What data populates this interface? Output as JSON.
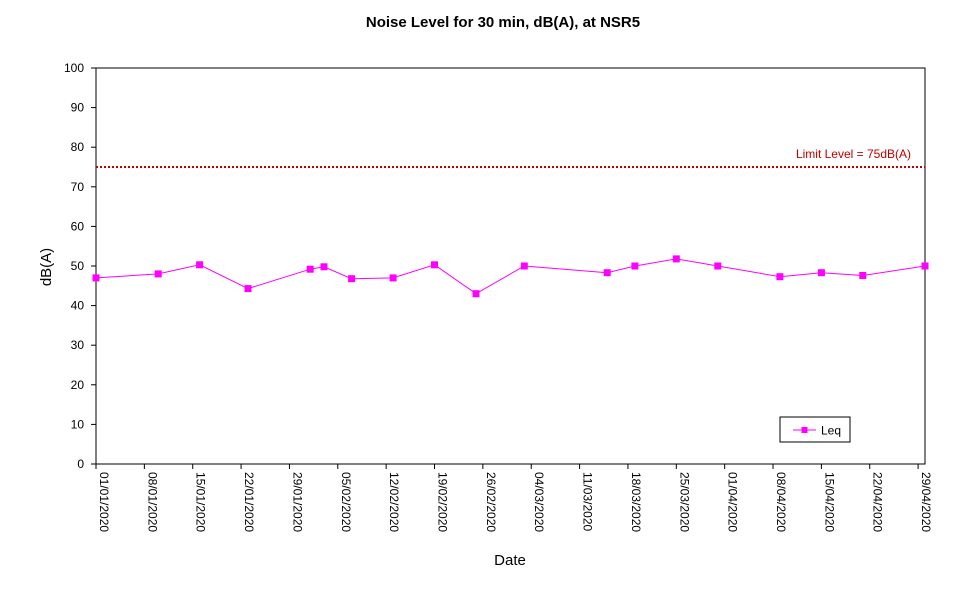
{
  "chart_data": {
    "type": "line",
    "title": "Noise Level for 30 min, dB(A), at NSR5",
    "xlabel": "Date",
    "ylabel": "dB(A)",
    "ylim": [
      0,
      100
    ],
    "yticks": [
      "0",
      "10",
      "20",
      "30",
      "40",
      "50",
      "60",
      "70",
      "80",
      "90",
      "100"
    ],
    "xlim": [
      "2020-01-01",
      "2020-04-30"
    ],
    "xtick_dates": [
      "2020-01-01",
      "2020-01-08",
      "2020-01-15",
      "2020-01-22",
      "2020-01-29",
      "2020-02-05",
      "2020-02-12",
      "2020-02-19",
      "2020-02-26",
      "2020-03-04",
      "2020-03-11",
      "2020-03-18",
      "2020-03-25",
      "2020-04-01",
      "2020-04-08",
      "2020-04-15",
      "2020-04-22",
      "2020-04-29"
    ],
    "xticks": [
      "01/01/2020",
      "08/01/2020",
      "15/01/2020",
      "22/01/2020",
      "29/01/2020",
      "05/02/2020",
      "12/02/2020",
      "19/02/2020",
      "26/02/2020",
      "04/03/2020",
      "11/03/2020",
      "18/03/2020",
      "25/03/2020",
      "01/04/2020",
      "08/04/2020",
      "15/04/2020",
      "22/04/2020",
      "29/04/2020"
    ],
    "grid": false,
    "legend_position": "bottom-right",
    "series": [
      {
        "name": "Leq",
        "color": "#ff00ff",
        "marker": "square",
        "points": [
          {
            "x": "2020-01-01",
            "y": 47.0
          },
          {
            "x": "2020-01-10",
            "y": 48.0
          },
          {
            "x": "2020-01-16",
            "y": 50.3
          },
          {
            "x": "2020-01-23",
            "y": 44.3
          },
          {
            "x": "2020-02-01",
            "y": 49.2
          },
          {
            "x": "2020-02-03",
            "y": 49.8
          },
          {
            "x": "2020-02-07",
            "y": 46.8
          },
          {
            "x": "2020-02-13",
            "y": 47.0
          },
          {
            "x": "2020-02-19",
            "y": 50.3
          },
          {
            "x": "2020-02-25",
            "y": 43.0
          },
          {
            "x": "2020-03-03",
            "y": 50.0
          },
          {
            "x": "2020-03-15",
            "y": 48.3
          },
          {
            "x": "2020-03-19",
            "y": 50.0
          },
          {
            "x": "2020-03-25",
            "y": 51.8
          },
          {
            "x": "2020-03-31",
            "y": 50.0
          },
          {
            "x": "2020-04-09",
            "y": 47.3
          },
          {
            "x": "2020-04-15",
            "y": 48.3
          },
          {
            "x": "2020-04-21",
            "y": 47.6
          },
          {
            "x": "2020-04-30",
            "y": 50.0
          }
        ]
      }
    ],
    "reference_lines": [
      {
        "y": 75,
        "label": "Limit Level  = 75dB(A)",
        "color": "#c00000",
        "style": "dotted"
      }
    ]
  }
}
